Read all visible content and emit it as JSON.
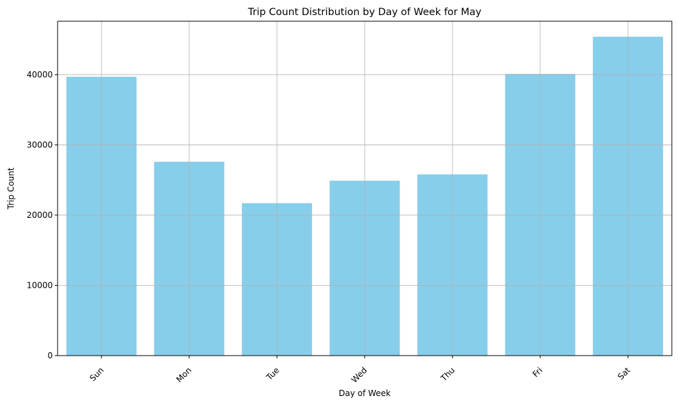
{
  "chart_data": {
    "type": "bar",
    "title": "Trip Count Distribution by Day of Week for May",
    "xlabel": "Day of Week",
    "ylabel": "Trip Count",
    "categories": [
      "Sun",
      "Mon",
      "Tue",
      "Wed",
      "Thu",
      "Fri",
      "Sat"
    ],
    "values": [
      39700,
      27600,
      21700,
      24900,
      25800,
      40100,
      45400
    ],
    "ylim": [
      0,
      47600
    ],
    "yticks": [
      0,
      10000,
      20000,
      30000,
      40000
    ],
    "grid": true,
    "bar_color": "#87CEEB",
    "grid_color": "#b0b0b0"
  }
}
